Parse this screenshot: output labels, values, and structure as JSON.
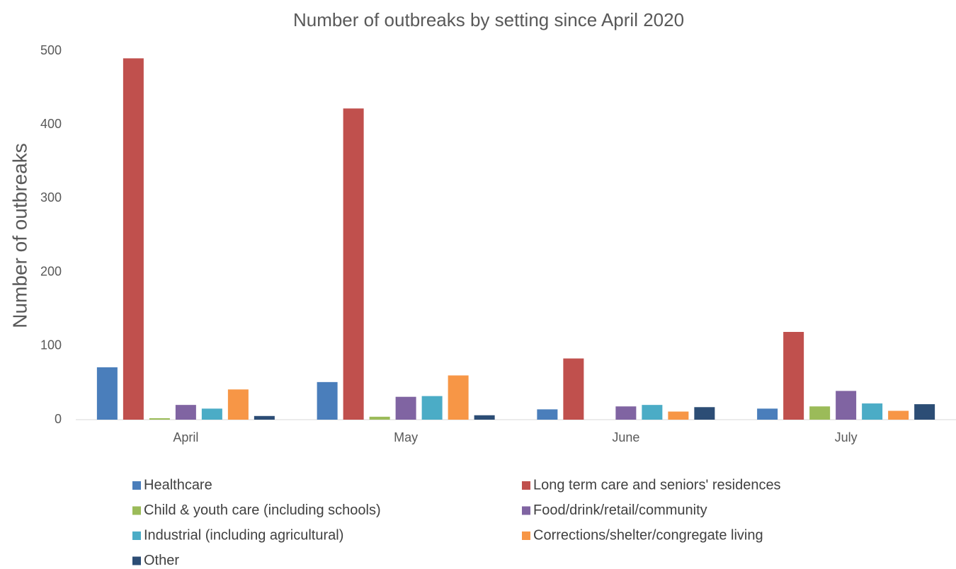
{
  "chart_data": {
    "type": "bar",
    "title": "Number of outbreaks by setting since April 2020",
    "y_label": "Number of outbreaks",
    "categories": [
      "April",
      "May",
      "June",
      "July"
    ],
    "series": [
      {
        "name": "Healthcare",
        "color": "#4a7ebb",
        "values": [
          71,
          51,
          14,
          15
        ]
      },
      {
        "name": "Long term care and seniors' residences",
        "color": "#c0504d",
        "values": [
          490,
          422,
          83,
          119
        ]
      },
      {
        "name": "Child & youth care (including schools)",
        "color": "#9bbb59",
        "values": [
          2,
          4,
          0,
          18
        ]
      },
      {
        "name": "Food/drink/retail/community",
        "color": "#8064a2",
        "values": [
          20,
          31,
          18,
          39
        ]
      },
      {
        "name": "Industrial (including agricultural)",
        "color": "#4bacc6",
        "values": [
          15,
          32,
          20,
          22
        ]
      },
      {
        "name": "Corrections/shelter/congregate living",
        "color": "#f79646",
        "values": [
          41,
          60,
          11,
          12
        ]
      },
      {
        "name": "Other",
        "color": "#2c4d75",
        "values": [
          5,
          6,
          17,
          21
        ]
      }
    ],
    "ylim": [
      0,
      500
    ],
    "yticks": [
      0,
      100,
      200,
      300,
      400,
      500
    ],
    "grid": false,
    "legend": "bottom"
  }
}
